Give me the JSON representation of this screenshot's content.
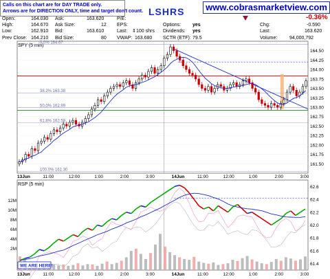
{
  "header": {
    "note_line1": "Calls on this chart are for DAY TRADE only.",
    "note_line2": "Arrows are for DIRECTION ONLY, time and target don't count.",
    "website": "www.cobrasmarketview.com",
    "ticker": "LSHRS",
    "pct_change": "-0.36%",
    "quote": {
      "open_label": "Open:",
      "open": "164.030",
      "high_label": "High:",
      "high": "164.670",
      "low_label": "Low:",
      "low": "162.910",
      "prev_close_label": "Prev Close:",
      "prev_close": "164.210",
      "ask_label": "Ask:",
      "ask": "163.620",
      "ask_size_label": "Ask Size:",
      "ask_size": "12",
      "bid_label": "Bid:",
      "bid": "163.610",
      "bid_size_label": "Bid Size:",
      "bid_size": "80",
      "pe_label": "P/E:",
      "pe": "",
      "eps_label": "EPS:",
      "eps": "",
      "last_label": "Last:",
      "last_size": "100 shrs",
      "vwap_label": "VWAP:",
      "vwap": "163.680",
      "options_label": "Options:",
      "options": "yes",
      "dividends_label": "Dividends:",
      "dividends": "yes",
      "sctr_label": "SCTR (ETF):",
      "sctr": "79.5",
      "chg_label": "Chg:",
      "chg": "-0.590",
      "last_label2": "Last:",
      "last": "163.620",
      "volume_label": "Volume:",
      "volume": "94,000,792"
    }
  },
  "colors": {
    "up_bar": "#000000",
    "down_bar": "#cc0000",
    "ma_line": "#1a2ccc",
    "fib_line": "#9aa0cc",
    "resistance": "#cc0000",
    "support": "#1a8a1a",
    "highlight": "#f5b070",
    "rsi_up": "#00aa00",
    "rsi_down": "#cc0000",
    "rsi_flat": "#1a2ccc",
    "volume_bar": "#b0b0b0",
    "volume_red": "#f0a0a0"
  },
  "chart_data": [
    {
      "type": "candlestick",
      "title": "SPY (5 min)",
      "ylim": [
        161.25,
        164.75
      ],
      "y_ticks": [
        "164.50",
        "164.25",
        "164.00",
        "163.75",
        "163.50",
        "163.25",
        "163.00",
        "162.75",
        "162.50",
        "162.25",
        "162.00",
        "161.75",
        "161.50"
      ],
      "x_tick_labels": [
        "13Jun",
        "11:00",
        "12:00",
        "1:00",
        "2:00",
        "3:00",
        "14Jun",
        "11:00",
        "12:00",
        "1:00",
        "2:00",
        "3:00"
      ],
      "fib_labels": [
        {
          "text": "0.0% 164.67",
          "value": 164.67
        },
        {
          "text": "38.2% 163.38",
          "value": 163.38
        },
        {
          "text": "50.0% 162.99",
          "value": 162.99
        },
        {
          "text": "61.8% 162.59",
          "value": 162.59
        },
        {
          "text": "100.0% 161.30",
          "value": 161.3
        }
      ],
      "resistance": 163.83,
      "support": 162.92,
      "dashed_level": 164.2,
      "trendline": {
        "start": 164.55,
        "end": 162.95
      },
      "close_series": [
        161.55,
        161.6,
        161.75,
        161.7,
        161.9,
        161.85,
        162.05,
        162.1,
        162.2,
        162.15,
        162.3,
        162.4,
        162.35,
        162.45,
        162.55,
        162.5,
        162.6,
        162.65,
        162.55,
        162.5,
        162.6,
        162.7,
        162.8,
        162.95,
        163.05,
        163.2,
        163.15,
        163.3,
        163.4,
        163.5,
        163.55,
        163.6,
        163.55,
        163.65,
        163.7,
        163.6,
        163.5,
        163.65,
        163.75,
        163.85,
        163.8,
        163.95,
        164.05,
        163.9,
        164.0,
        164.1,
        164.3,
        164.4,
        164.6,
        164.5,
        164.35,
        164.25,
        164.1,
        164.0,
        163.9,
        163.85,
        163.75,
        163.6,
        163.5,
        163.45,
        163.55,
        163.4,
        163.5,
        163.6,
        163.55,
        163.45,
        163.5,
        163.6,
        163.65,
        163.55,
        163.6,
        163.7,
        163.75,
        163.65,
        163.5,
        163.4,
        163.2,
        163.1,
        163.05,
        163.0,
        163.1,
        163.05,
        163.0,
        163.1,
        163.2,
        163.4,
        163.55,
        163.45,
        163.3,
        163.4,
        163.55,
        163.7
      ]
    },
    {
      "type": "line",
      "title": "RSP (5 min)",
      "ylim": [
        61.3,
        62.7
      ],
      "y_ticks": [
        "62.6",
        "62.4",
        "62.2",
        "62.0",
        "61.8",
        "61.6",
        "61.4"
      ],
      "volume_ticks": [
        "12M",
        "10M",
        "8M",
        "6M",
        "4M",
        "2M"
      ],
      "x_tick_labels": [
        "13Jun",
        "11:00",
        "12:00",
        "1:00",
        "2:00",
        "3:00",
        "14Jun",
        "11:00",
        "12:00",
        "1:00",
        "2:00",
        "3:00"
      ],
      "annotation": "WE ARE HERE!",
      "dashed_level": 62.42,
      "close_series": [
        61.45,
        61.48,
        61.5,
        61.55,
        61.62,
        61.6,
        61.65,
        61.72,
        61.78,
        61.75,
        61.8,
        61.85,
        61.82,
        61.9,
        61.95,
        61.92,
        62.0,
        61.98,
        62.05,
        62.1,
        62.08,
        62.15,
        62.2,
        62.18,
        62.25,
        62.3,
        62.28,
        62.35,
        62.4,
        62.45,
        62.5,
        62.55,
        62.6,
        62.62,
        62.58,
        62.5,
        62.4,
        62.3,
        62.25,
        62.28,
        62.22,
        62.3,
        62.25,
        62.2,
        62.28,
        62.32,
        62.25,
        62.18,
        62.2,
        62.15,
        62.1,
        62.05,
        62.0,
        62.05,
        62.1,
        62.18,
        62.22,
        62.15,
        62.2,
        62.25
      ],
      "volume_series": [
        3.2,
        2.4,
        2.0,
        1.6,
        1.8,
        1.5,
        1.2,
        1.4,
        1.1,
        1.3,
        1.0,
        1.2,
        1.6,
        1.1,
        1.4,
        1.3,
        1.0,
        1.5,
        2.0,
        1.4,
        1.7,
        2.2,
        3.0,
        4.5,
        5.0,
        3.8,
        2.6,
        4.0,
        6.0,
        8.5,
        5.5,
        4.2,
        3.5,
        3.0,
        2.6,
        2.4,
        3.1,
        2.0,
        1.7,
        1.5,
        1.8,
        1.2,
        1.4,
        1.6,
        2.4,
        2.1,
        2.8,
        3.3,
        2.5,
        2.0,
        1.6,
        1.4,
        1.9,
        2.6,
        2.2,
        3.0,
        2.7,
        2.2,
        2.5,
        3.2
      ]
    }
  ]
}
